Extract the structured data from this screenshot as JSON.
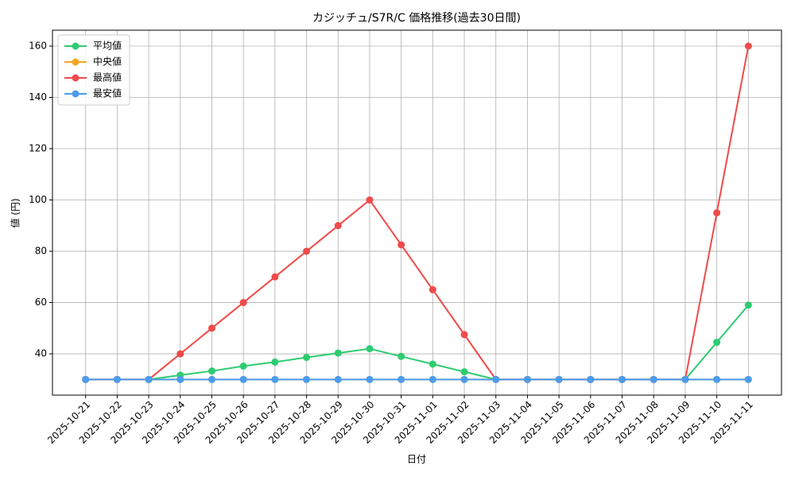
{
  "chart_data": {
    "type": "line",
    "title": "カジッチュ/S7R/C 価格推移(過去30日間)",
    "x_label": "日付",
    "y_label": "値 (円)",
    "categories": [
      "2025-10-21",
      "2025-10-22",
      "2025-10-23",
      "2025-10-24",
      "2025-10-25",
      "2025-10-26",
      "2025-10-27",
      "2025-10-28",
      "2025-10-29",
      "2025-10-30",
      "2025-10-31",
      "2025-11-01",
      "2025-11-02",
      "2025-11-03",
      "2025-11-04",
      "2025-11-05",
      "2025-11-06",
      "2025-11-07",
      "2025-11-08",
      "2025-11-09",
      "2025-11-10",
      "2025-11-11"
    ],
    "series": [
      {
        "name": "平均値",
        "color": "#2ecc71",
        "values": [
          30,
          30,
          30,
          31.7,
          33.3,
          35.2,
          36.8,
          38.6,
          40.3,
          42,
          39,
          36,
          33,
          30,
          30,
          30,
          30,
          30,
          30,
          30,
          44.5,
          59
        ]
      },
      {
        "name": "中央値",
        "color": "#f5a623",
        "values": [
          30,
          30,
          30,
          30,
          30,
          30,
          30,
          30,
          30,
          30,
          30,
          30,
          30,
          30,
          30,
          30,
          30,
          30,
          30,
          30,
          30,
          30
        ]
      },
      {
        "name": "最高値",
        "color": "#f04a4a",
        "values": [
          30,
          30,
          30,
          40,
          50,
          60,
          70,
          80,
          90,
          100,
          82.5,
          65,
          47.5,
          30,
          30,
          30,
          30,
          30,
          30,
          30,
          95,
          160
        ]
      },
      {
        "name": "最安値",
        "color": "#4a9cf0",
        "values": [
          30,
          30,
          30,
          30,
          30,
          30,
          30,
          30,
          30,
          30,
          30,
          30,
          30,
          30,
          30,
          30,
          30,
          30,
          30,
          30,
          30,
          30
        ]
      }
    ],
    "ylim": [
      23.9,
      166.2
    ],
    "yticks": [
      40,
      60,
      80,
      100,
      120,
      140,
      160
    ],
    "grid": true,
    "legend": "upper-left"
  }
}
